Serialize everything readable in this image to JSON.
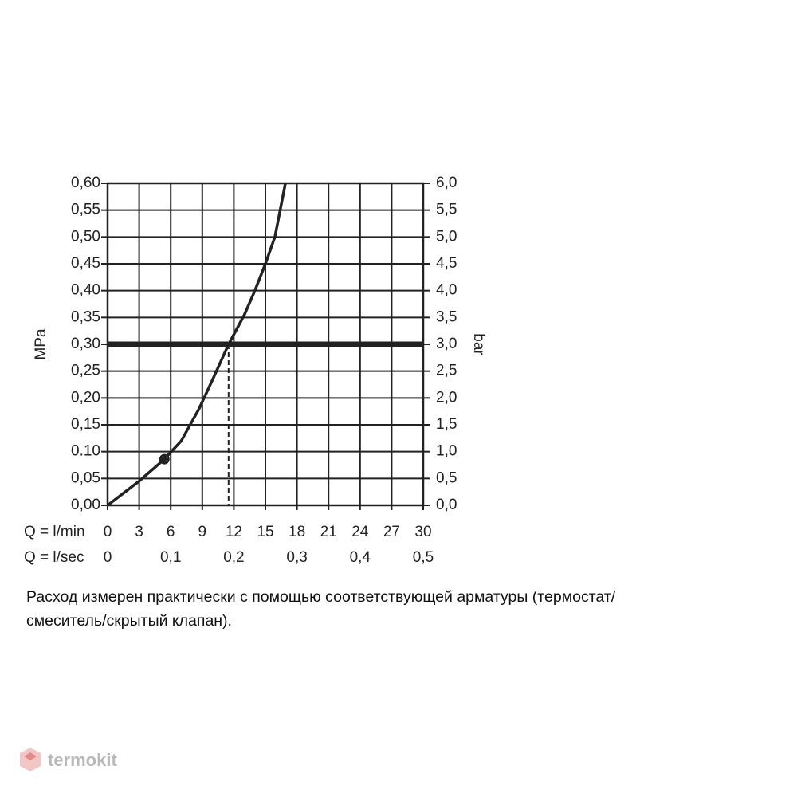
{
  "chart_data": {
    "type": "line",
    "x_label": "Q = l/min",
    "x2_label": "Q = l/sec",
    "y_label": "MPa",
    "y2_label": "bar",
    "x": [
      0,
      3,
      5.4,
      7,
      8.7,
      10,
      11.5,
      13,
      14,
      15,
      15.9,
      16.9
    ],
    "values": [
      0,
      0.045,
      0.086,
      0.12,
      0.18,
      0.235,
      0.3,
      0.355,
      0.4,
      0.45,
      0.5,
      0.6
    ],
    "color": "#222222",
    "marker": {
      "x": 5.4,
      "y": 0.086
    },
    "hline": 0.3,
    "vline": 11.5,
    "xlim": [
      0,
      30
    ],
    "xticks": [
      0,
      3,
      6,
      9,
      12,
      15,
      18,
      21,
      24,
      27,
      30
    ],
    "x2lim": [
      0,
      0.5
    ],
    "x2ticks": [
      0,
      {
        "value": 0.1,
        "label": "0,1"
      },
      {
        "value": 0.2,
        "label": "0,2"
      },
      {
        "value": 0.3,
        "label": "0,3"
      },
      {
        "value": 0.4,
        "label": "0,4"
      },
      {
        "value": 0.5,
        "label": "0,5"
      }
    ],
    "ylim": [
      0,
      0.6
    ],
    "yticks": [
      {
        "value": 0,
        "label": "0,00"
      },
      {
        "value": 0.05,
        "label": "0,05"
      },
      {
        "value": 0.1,
        "label": "0.10"
      },
      {
        "value": 0.15,
        "label": "0,15"
      },
      {
        "value": 0.2,
        "label": "0,20"
      },
      {
        "value": 0.25,
        "label": "0,25"
      },
      {
        "value": 0.3,
        "label": "0,30"
      },
      {
        "value": 0.35,
        "label": "0,35"
      },
      {
        "value": 0.4,
        "label": "0,40"
      },
      {
        "value": 0.45,
        "label": "0,45"
      },
      {
        "value": 0.5,
        "label": "0,50"
      },
      {
        "value": 0.55,
        "label": "0,55"
      },
      {
        "value": 0.6,
        "label": "0,60"
      }
    ],
    "y2lim": [
      0,
      6
    ],
    "y2ticks": [
      {
        "value": 0,
        "label": "0,0"
      },
      {
        "value": 0.5,
        "label": "0,5"
      },
      {
        "value": 1,
        "label": "1,0"
      },
      {
        "value": 1.5,
        "label": "1,5"
      },
      {
        "value": 2,
        "label": "2,0"
      },
      {
        "value": 2.5,
        "label": "2,5"
      },
      {
        "value": 3,
        "label": "3,0"
      },
      {
        "value": 3.5,
        "label": "3,5"
      },
      {
        "value": 4,
        "label": "4,0"
      },
      {
        "value": 4.5,
        "label": "4,5"
      },
      {
        "value": 5,
        "label": "5,0"
      },
      {
        "value": 5.5,
        "label": "5,5"
      },
      {
        "value": 6,
        "label": "6,0"
      }
    ],
    "grid": true
  },
  "note": [
    "Расход измерен практически с помощью соответствующей арматуры (термостат/",
    "смеситель/скрытый клапан)."
  ],
  "watermark": "termokit"
}
